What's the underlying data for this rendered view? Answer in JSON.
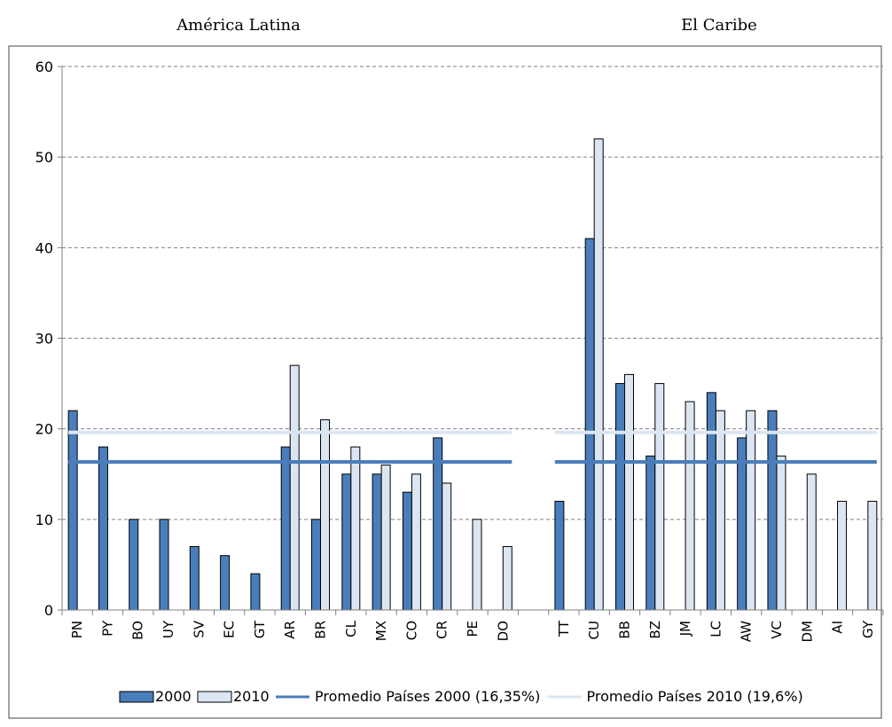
{
  "chart_data": {
    "type": "bar",
    "group_titles": [
      "América Latina",
      "El Caribe"
    ],
    "categories": [
      "PN",
      "PY",
      "BO",
      "UY",
      "SV",
      "EC",
      "GT",
      "AR",
      "BR",
      "CL",
      "MX",
      "CO",
      "CR",
      "PE",
      "DO",
      "",
      "TT",
      "CU",
      "BB",
      "BZ",
      "JM",
      "LC",
      "AW",
      "VC",
      "DM",
      "AI",
      "GY"
    ],
    "series": [
      {
        "name": "2000",
        "color": "#4a7ebb",
        "values": [
          22,
          18,
          10,
          10,
          7,
          6,
          4,
          18,
          10,
          15,
          15,
          13,
          19,
          0,
          0,
          null,
          12,
          41,
          25,
          17,
          0,
          24,
          19,
          22,
          0,
          0,
          0
        ]
      },
      {
        "name": "2010",
        "color": "#dce6f2",
        "values": [
          0,
          0,
          0,
          0,
          0,
          0,
          0,
          27,
          21,
          18,
          16,
          15,
          14,
          10,
          7,
          null,
          0,
          52,
          26,
          25,
          23,
          22,
          22,
          17,
          15,
          12,
          12
        ]
      }
    ],
    "reference_lines": [
      {
        "name": "Promedio Países 2000 (16,35%)",
        "value": 16.35,
        "color": "#4a7ebb"
      },
      {
        "name": "Promedio Países 2010 (19,6%)",
        "value": 19.6,
        "color": "#dce6f2"
      }
    ],
    "yticks": [
      0,
      10,
      20,
      30,
      40,
      50,
      60
    ],
    "ylim": [
      0,
      60
    ],
    "grid": true,
    "legend_position": "bottom"
  }
}
